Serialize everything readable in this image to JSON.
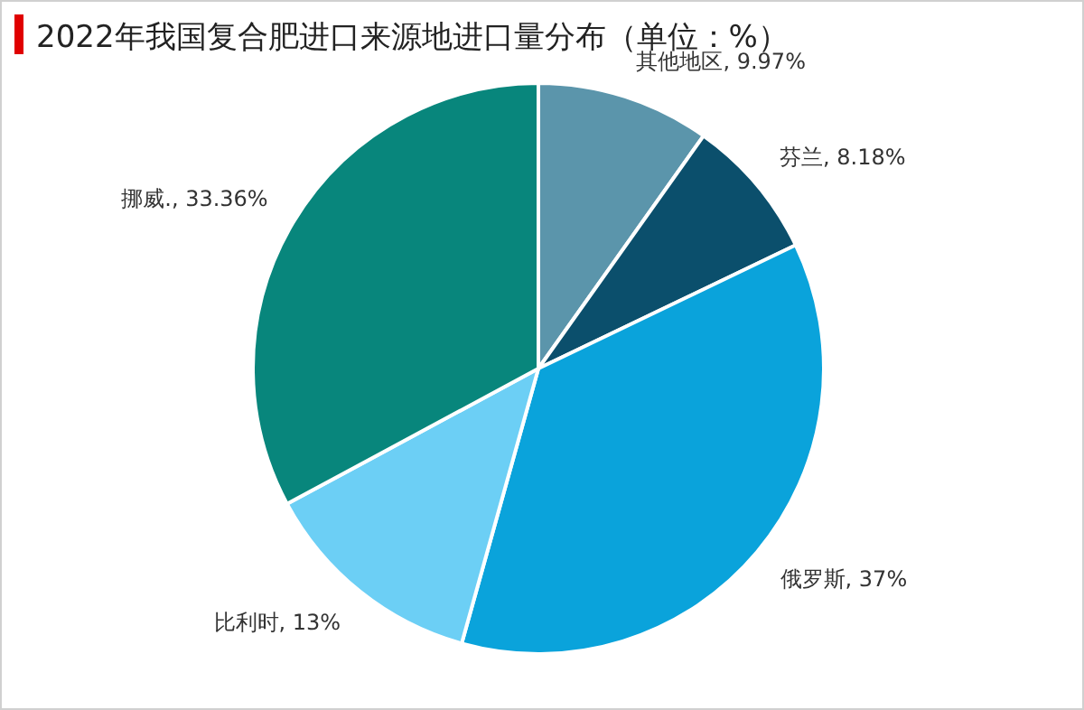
{
  "chart_data": {
    "type": "pie",
    "title": "2022年我国复合肥进口来源地进口量分布（单位：%）",
    "categories": [
      "其他地区",
      "芬兰",
      "俄罗斯",
      "比利时",
      "挪威."
    ],
    "values": [
      9.97,
      8.18,
      37,
      13,
      33.36
    ],
    "colors": [
      "#5b95ab",
      "#0b4f6c",
      "#0aa3db",
      "#6ccff5",
      "#08867c"
    ],
    "value_labels": [
      "9.97%",
      "8.18%",
      "37%",
      "13%",
      "33.36%"
    ]
  }
}
